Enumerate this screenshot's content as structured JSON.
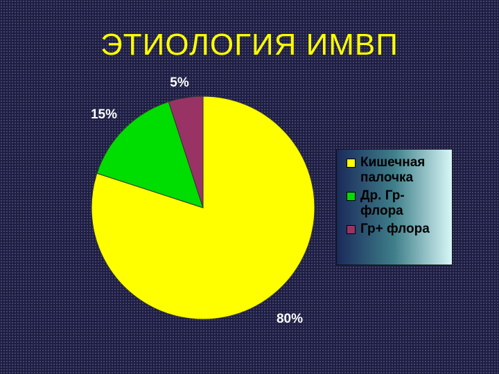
{
  "slide": {
    "title": "ЭТИОЛОГИЯ ИМВП"
  },
  "chart_data": {
    "type": "pie",
    "title": "",
    "start_angle_deg": 0,
    "direction": "clockwise",
    "slices": [
      {
        "name": "Кишечная палочка",
        "value": 80,
        "label": "80%",
        "color": "#ffff00"
      },
      {
        "name": "Др. Гр- флора",
        "value": 15,
        "label": "15%",
        "color": "#00dd00"
      },
      {
        "name": "Гр+ флора",
        "value": 5,
        "label": "5%",
        "color": "#993366"
      }
    ],
    "legend_position": "right",
    "legend": [
      {
        "label": "Кишечная палочка",
        "color": "#ffff00"
      },
      {
        "label": "Др. Гр- флора",
        "color": "#00dd00"
      },
      {
        "label": "Гр+ флора",
        "color": "#993366"
      }
    ]
  }
}
